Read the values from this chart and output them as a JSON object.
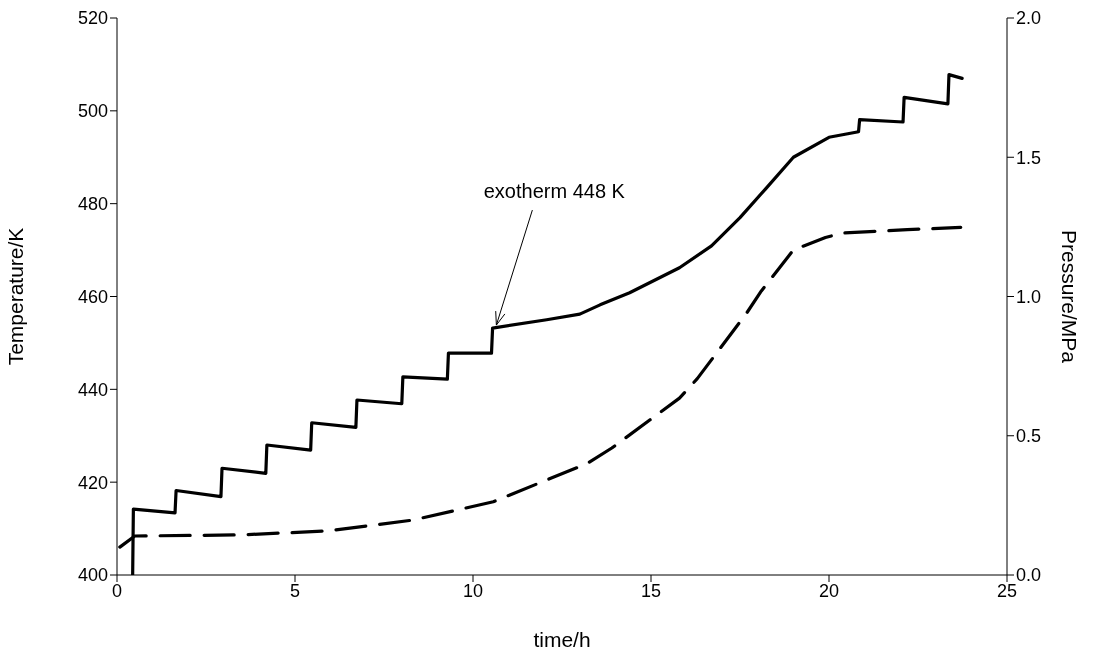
{
  "chart_data": {
    "type": "line",
    "xlabel": "time/h",
    "ylabel": "Temperature/K",
    "y2label": "Pressure/MPa",
    "xlim": [
      0,
      25
    ],
    "xticks": [
      0,
      5,
      10,
      15,
      20,
      25
    ],
    "ylim": [
      400,
      520
    ],
    "yticks": [
      400,
      420,
      440,
      460,
      480,
      500,
      520
    ],
    "y2lim": [
      0,
      2
    ],
    "y2ticks": [
      {
        "value": 0,
        "label": "0.0"
      },
      {
        "value": 0.5,
        "label": "0.5"
      },
      {
        "value": 1,
        "label": "1.0"
      },
      {
        "value": 1.5,
        "label": "1.5"
      },
      {
        "value": 2,
        "label": "2.0"
      }
    ],
    "annotations": [
      {
        "text": "exotherm 448 K",
        "x": 10.6,
        "y": 453.2
      }
    ],
    "series": [
      {
        "color": "#000000",
        "line_style": "solid",
        "x": [
          0.44,
          0.46,
          1.63,
          1.66,
          2.92,
          2.95,
          4.18,
          4.21,
          5.44,
          5.47,
          6.71,
          6.74,
          8.0,
          8.03,
          9.28,
          9.31,
          10.52,
          10.55,
          12.07,
          13.0,
          13.57,
          14.4,
          15.8,
          16.7,
          17.5,
          18.22,
          19.0,
          20.0,
          20.83,
          20.86,
          22.08,
          22.11,
          23.34,
          23.37,
          23.74
        ],
        "values": [
          400,
          414.2,
          413.4,
          418.2,
          416.9,
          423,
          421.9,
          428,
          426.9,
          432.8,
          431.8,
          437.7,
          436.9,
          442.7,
          442.2,
          447.8,
          447.8,
          453.2,
          455,
          456.2,
          458.2,
          460.8,
          466.2,
          470.9,
          477,
          483.2,
          490,
          494.3,
          495.5,
          498.1,
          497.6,
          502.9,
          501.5,
          507.8,
          507
        ]
      },
      {
        "color": "#000000",
        "line_style": "dashed",
        "axis": "y2",
        "x": [
          0.08,
          0.5,
          3.46,
          5.9,
          8.3,
          10.57,
          13.2,
          13.9,
          15.8,
          16.3,
          17.7,
          18.1,
          19.0,
          19.9,
          20.4,
          22.2,
          23.7
        ],
        "values": [
          0.1,
          0.14,
          0.144,
          0.158,
          0.197,
          0.263,
          0.4,
          0.456,
          0.635,
          0.705,
          0.943,
          1.02,
          1.167,
          1.212,
          1.228,
          1.24,
          1.248
        ]
      }
    ]
  }
}
